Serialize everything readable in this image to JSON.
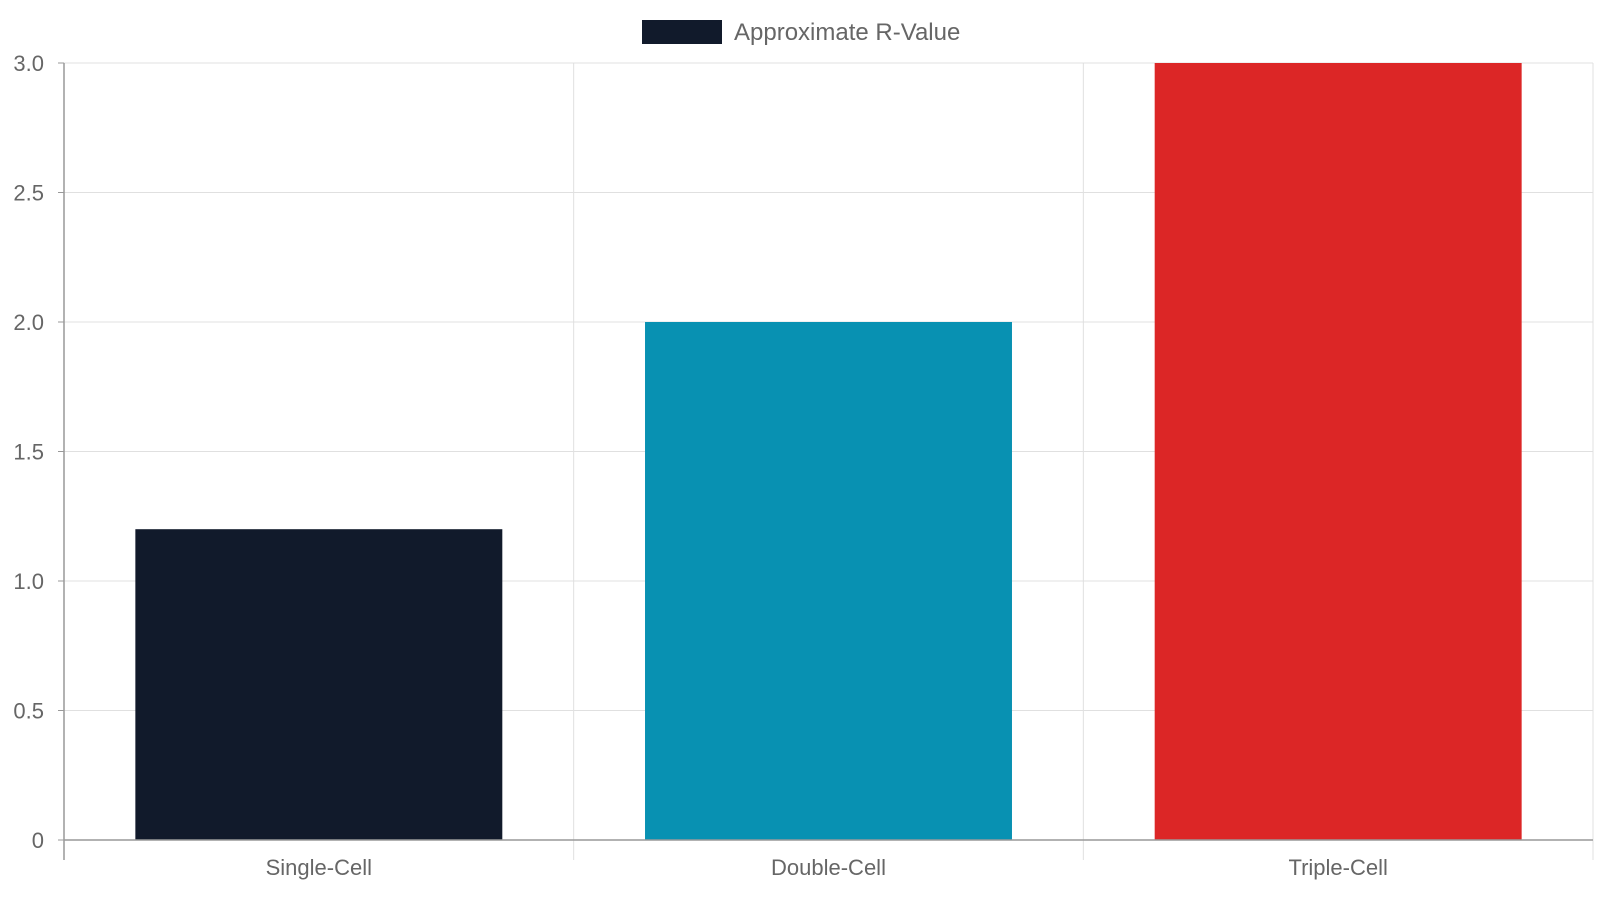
{
  "chart_data": {
    "type": "bar",
    "categories": [
      "Single-Cell",
      "Double-Cell",
      "Triple-Cell"
    ],
    "series": [
      {
        "name": "Approximate R-Value",
        "values": [
          1.2,
          2.0,
          3.0
        ],
        "colors": [
          "#111a2b",
          "#0891b2",
          "#dc2626"
        ]
      }
    ],
    "yticks": [
      "0",
      "0.5",
      "1.0",
      "1.5",
      "2.0",
      "2.5",
      "3.0"
    ],
    "ylim": [
      0,
      3.0
    ],
    "grid": true,
    "legend_position": "top-center",
    "title": "",
    "xlabel": "",
    "ylabel": ""
  }
}
